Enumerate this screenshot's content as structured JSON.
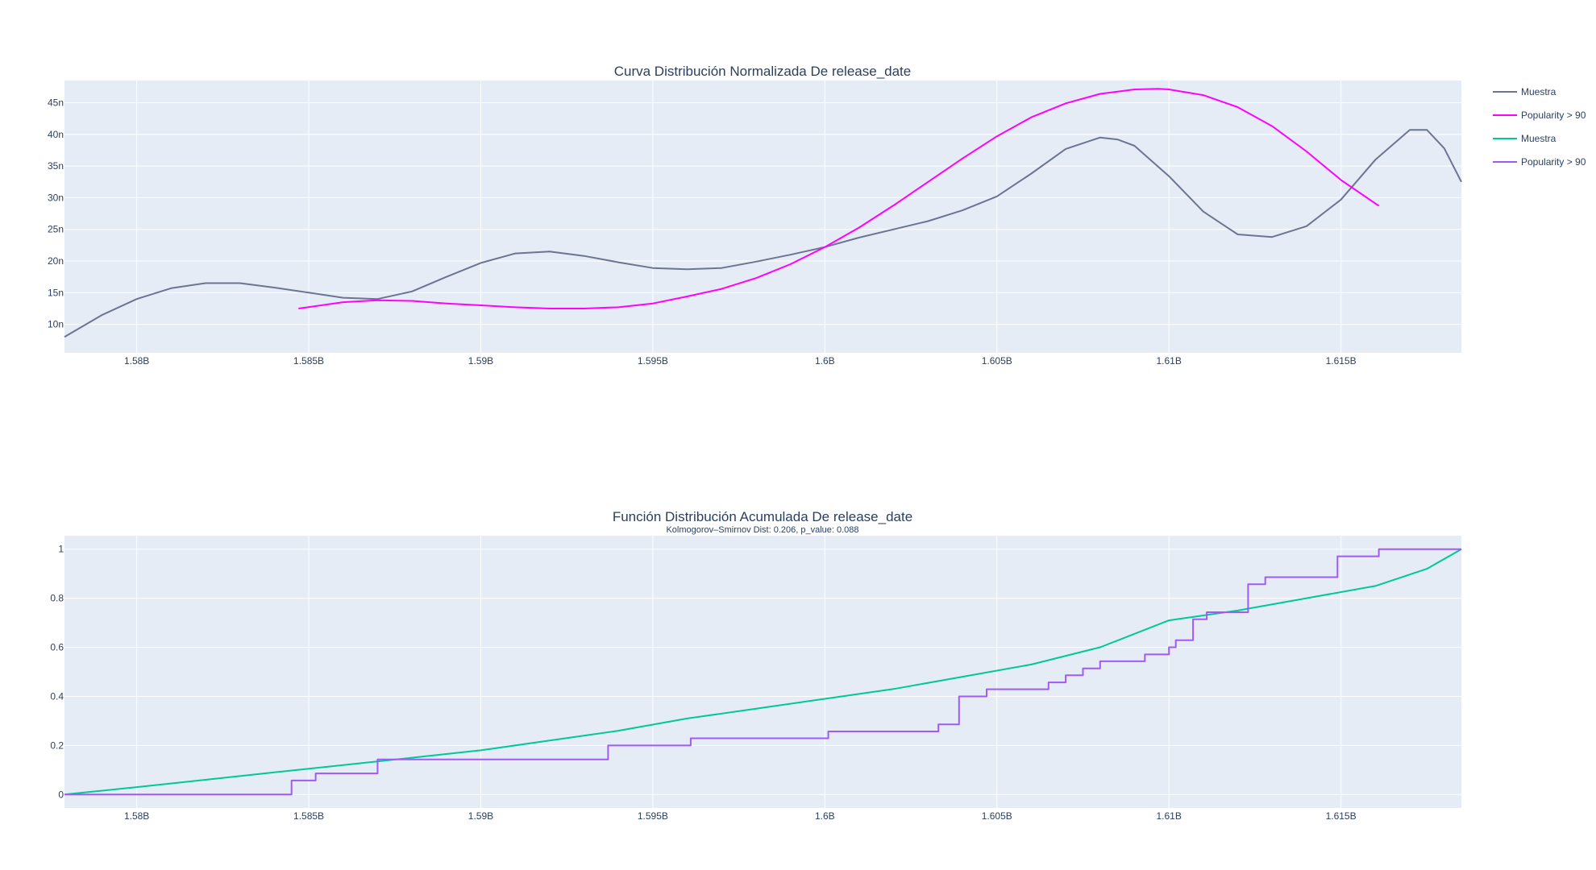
{
  "colors": {
    "plot_bg": "#e5ecf6",
    "grid": "#ffffff",
    "text": "#2a3f5f",
    "muestra_pdf": "#6b7590",
    "popularity_pdf": "#ff00ff",
    "muestra_cdf": "#00c896",
    "popularity_cdf": "#a259f7"
  },
  "legend": [
    {
      "name": "Muestra",
      "color": "#6b7590"
    },
    {
      "name": "Popularity > 90",
      "color": "#ff00ff"
    },
    {
      "name": "Muestra",
      "color": "#00c896"
    },
    {
      "name": "Popularity > 90",
      "color": "#a259f7"
    }
  ],
  "chart_data": [
    {
      "type": "line",
      "title": "Curva Distribución Normalizada De release_date",
      "xlim": [
        1577900000,
        1618500000
      ],
      "ylim": [
        5.5e-09,
        4.85e-08
      ],
      "x_ticks": [
        1580000000,
        1585000000,
        1590000000,
        1595000000,
        1600000000,
        1605000000,
        1610000000,
        1615000000
      ],
      "x_tick_labels": [
        "1.58B",
        "1.585B",
        "1.59B",
        "1.595B",
        "1.6B",
        "1.605B",
        "1.61B",
        "1.615B"
      ],
      "y_ticks": [
        1e-08,
        1.5e-08,
        2e-08,
        2.5e-08,
        3e-08,
        3.5e-08,
        4e-08,
        4.5e-08
      ],
      "y_tick_labels": [
        "10n",
        "15n",
        "20n",
        "25n",
        "30n",
        "35n",
        "40n",
        "45n"
      ],
      "series": [
        {
          "name": "Muestra",
          "color": "#6b7590",
          "x": [
            1577900000,
            1579000000,
            1580000000,
            1581000000,
            1582000000,
            1583000000,
            1584000000,
            1585000000,
            1586000000,
            1587000000,
            1588000000,
            1589000000,
            1590000000,
            1591000000,
            1592000000,
            1593000000,
            1594000000,
            1595000000,
            1596000000,
            1597000000,
            1598000000,
            1599000000,
            1600000000,
            1601000000,
            1602000000,
            1603000000,
            1604000000,
            1605000000,
            1606000000,
            1607000000,
            1608000000,
            1608500000,
            1609000000,
            1610000000,
            1611000000,
            1612000000,
            1613000000,
            1614000000,
            1615000000,
            1616000000,
            1617000000,
            1617500000,
            1618000000,
            1618500000
          ],
          "y": [
            8e-09,
            1.15e-08,
            1.4e-08,
            1.57e-08,
            1.65e-08,
            1.65e-08,
            1.58e-08,
            1.5e-08,
            1.42e-08,
            1.4e-08,
            1.52e-08,
            1.75e-08,
            1.97e-08,
            2.12e-08,
            2.15e-08,
            2.08e-08,
            1.98e-08,
            1.89e-08,
            1.87e-08,
            1.89e-08,
            1.99e-08,
            2.1e-08,
            2.22e-08,
            2.37e-08,
            2.5e-08,
            2.63e-08,
            2.8e-08,
            3.02e-08,
            3.38e-08,
            3.77e-08,
            3.95e-08,
            3.92e-08,
            3.82e-08,
            3.34e-08,
            2.78e-08,
            2.42e-08,
            2.38e-08,
            2.55e-08,
            2.97e-08,
            3.6e-08,
            4.07e-08,
            4.07e-08,
            3.78e-08,
            3.25e-08
          ]
        },
        {
          "name": "Popularity > 90",
          "color": "#ff00ff",
          "x": [
            1584700000,
            1586000000,
            1587000000,
            1588000000,
            1589000000,
            1590000000,
            1591000000,
            1592000000,
            1593000000,
            1594000000,
            1595000000,
            1596000000,
            1597000000,
            1598000000,
            1599000000,
            1600000000,
            1601000000,
            1602000000,
            1603000000,
            1604000000,
            1605000000,
            1606000000,
            1607000000,
            1608000000,
            1609000000,
            1609700000,
            1610000000,
            1611000000,
            1612000000,
            1613000000,
            1614000000,
            1615000000,
            1616100000
          ],
          "y": [
            1.25e-08,
            1.35e-08,
            1.38e-08,
            1.37e-08,
            1.33e-08,
            1.3e-08,
            1.27e-08,
            1.25e-08,
            1.25e-08,
            1.27e-08,
            1.33e-08,
            1.44e-08,
            1.56e-08,
            1.73e-08,
            1.95e-08,
            2.22e-08,
            2.53e-08,
            2.88e-08,
            3.25e-08,
            3.62e-08,
            3.97e-08,
            4.27e-08,
            4.49e-08,
            4.64e-08,
            4.71e-08,
            4.72e-08,
            4.71e-08,
            4.62e-08,
            4.43e-08,
            4.13e-08,
            3.73e-08,
            3.28e-08,
            2.87e-08
          ]
        }
      ]
    },
    {
      "type": "line",
      "title": "Función Distribución Acumulada De release_date",
      "subtitle": "Kolmogorov–Smirnov Dist: 0.206, p_value:  0.088",
      "xlim": [
        1577900000,
        1618500000
      ],
      "ylim": [
        -0.055,
        1.055
      ],
      "x_ticks": [
        1580000000,
        1585000000,
        1590000000,
        1595000000,
        1600000000,
        1605000000,
        1610000000,
        1615000000
      ],
      "x_tick_labels": [
        "1.58B",
        "1.585B",
        "1.59B",
        "1.595B",
        "1.6B",
        "1.605B",
        "1.61B",
        "1.615B"
      ],
      "y_ticks": [
        0,
        0.2,
        0.4,
        0.6,
        0.8,
        1
      ],
      "y_tick_labels": [
        "0",
        "0.2",
        "0.4",
        "0.6",
        "0.8",
        "1"
      ],
      "series": [
        {
          "name": "Muestra",
          "color": "#00c896",
          "x": [
            1577900000,
            1580000000,
            1582000000,
            1584000000,
            1586000000,
            1588000000,
            1590000000,
            1592000000,
            1594000000,
            1596000000,
            1598000000,
            1600000000,
            1602000000,
            1604000000,
            1606000000,
            1608000000,
            1610000000,
            1612000000,
            1614000000,
            1616000000,
            1617500000,
            1618500000
          ],
          "y": [
            0,
            0.03,
            0.06,
            0.09,
            0.12,
            0.15,
            0.18,
            0.22,
            0.26,
            0.31,
            0.35,
            0.39,
            0.43,
            0.48,
            0.53,
            0.6,
            0.71,
            0.75,
            0.8,
            0.85,
            0.92,
            1
          ]
        },
        {
          "name": "Popularity > 90",
          "color": "#a259f7",
          "step": true,
          "x": [
            1577900000,
            1584500000,
            1585200000,
            1587000000,
            1593700000,
            1596100000,
            1600100000,
            1603300000,
            1603900000,
            1604700000,
            1606500000,
            1607000000,
            1607500000,
            1608000000,
            1609300000,
            1610000000,
            1610200000,
            1610700000,
            1611100000,
            1612300000,
            1612800000,
            1614900000,
            1616100000,
            1618500000
          ],
          "y": [
            0,
            0.057,
            0.086,
            0.143,
            0.2,
            0.229,
            0.257,
            0.286,
            0.4,
            0.429,
            0.457,
            0.486,
            0.514,
            0.543,
            0.571,
            0.6,
            0.629,
            0.714,
            0.743,
            0.857,
            0.886,
            0.971,
            1,
            1
          ]
        }
      ]
    }
  ]
}
